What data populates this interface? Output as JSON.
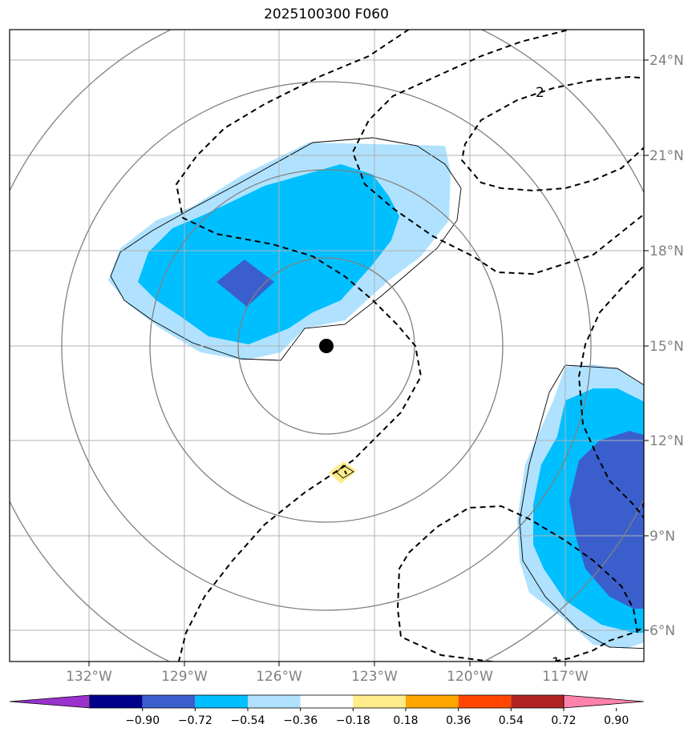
{
  "title": "2025100300 F060",
  "lon_labels": [
    "132°W",
    "129°W",
    "126°W",
    "123°W",
    "120°W",
    "117°W"
  ],
  "lat_labels": [
    "24°N",
    "21°N",
    "18°N",
    "15°N",
    "12°N",
    "9°N",
    "6°N"
  ],
  "contour_labels": [
    "2",
    "1"
  ],
  "colorbar": {
    "tick_labels": [
      "−0.90",
      "−0.72",
      "−0.54",
      "−0.36",
      "−0.18",
      "0.18",
      "0.36",
      "0.54",
      "0.72",
      "0.90"
    ],
    "colors": [
      "#9932cc",
      "#00008b",
      "#3a5fcd",
      "#00bfff",
      "#b0e2ff",
      "#ffffff",
      "#ffec8b",
      "#ffa500",
      "#ff4500",
      "#b22222",
      "#ff82ab"
    ]
  },
  "colors": {
    "light_blue": "#b0e2ff",
    "mid_blue": "#00bfff",
    "royal_blue": "#3a5fcd",
    "navy": "#00008b",
    "yellow": "#ffec8b",
    "gridline": "#b0b0b0",
    "range_ring": "#808080"
  },
  "center_marker": "storm-center-dot"
}
